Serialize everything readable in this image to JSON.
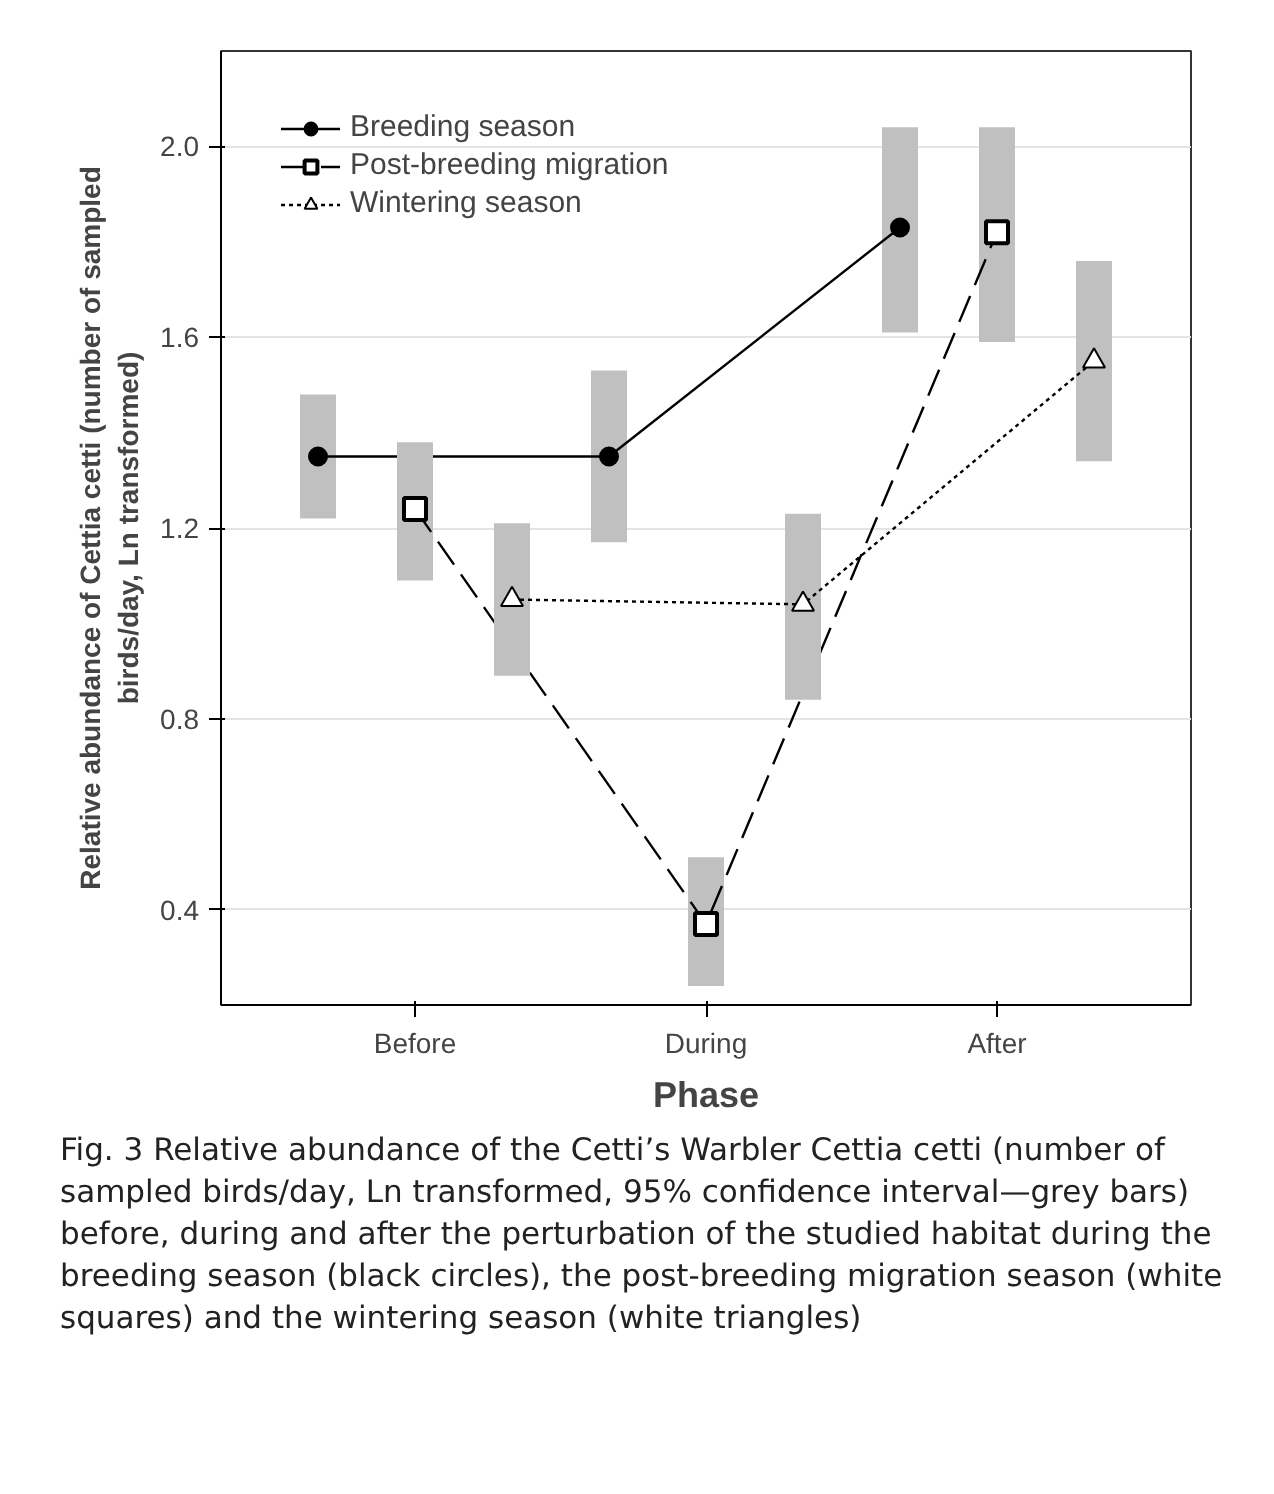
{
  "chart_data": {
    "type": "line",
    "xlabel": "Phase",
    "ylabel": "Relative abundance of Cettia cetti (number of sampled\nbirds/day, Ln transformed)",
    "categories": [
      null,
      "Before",
      null,
      null,
      "During",
      null,
      null,
      "After",
      null
    ],
    "ylim": [
      0.2,
      2.2
    ],
    "yticks": [
      0.4,
      0.8,
      1.2,
      1.6,
      {
        "value": 2.0,
        "label": "2.0"
      }
    ],
    "grid": "y",
    "legend": "top left",
    "series": [
      {
        "name": "Breeding season",
        "color": "#000000",
        "marker": "circle",
        "line_style": "solid",
        "values": [
          1.35,
          null,
          null,
          1.35,
          null,
          null,
          1.83,
          null,
          null
        ],
        "errors": [
          [
            1.22,
            1.48
          ],
          null,
          null,
          [
            1.17,
            1.53
          ],
          null,
          null,
          [
            1.61,
            2.04
          ],
          null,
          null
        ]
      },
      {
        "name": "Post-breeding migration",
        "color": "#000000",
        "marker": "square",
        "line_style": "dashed",
        "values": [
          null,
          1.24,
          null,
          null,
          0.37,
          null,
          null,
          1.82,
          null
        ],
        "errors": [
          null,
          [
            1.09,
            1.38
          ],
          null,
          null,
          [
            0.24,
            0.51
          ],
          null,
          null,
          [
            1.59,
            2.04
          ],
          null
        ]
      },
      {
        "name": "Wintering season",
        "color": "#000000",
        "marker": "triangle",
        "line_style": "dotted",
        "values": [
          null,
          null,
          1.05,
          null,
          null,
          1.04,
          null,
          null,
          1.55
        ],
        "errors": [
          null,
          null,
          [
            0.89,
            1.21
          ],
          null,
          null,
          [
            0.84,
            1.23
          ],
          null,
          null,
          [
            1.34,
            1.76
          ]
        ]
      }
    ],
    "annotations": [
      "Fig. 3 Relative abundance of the Cetti’s Warbler Cettia cetti (number of sampled birds/day, Ln transformed, 95% confidence interval—grey bars) before, during and after the perturbation of the studied habitat during the breeding season (black circles), the post-breeding migration season (white squares) and the wintering season (white triangles)"
    ]
  }
}
